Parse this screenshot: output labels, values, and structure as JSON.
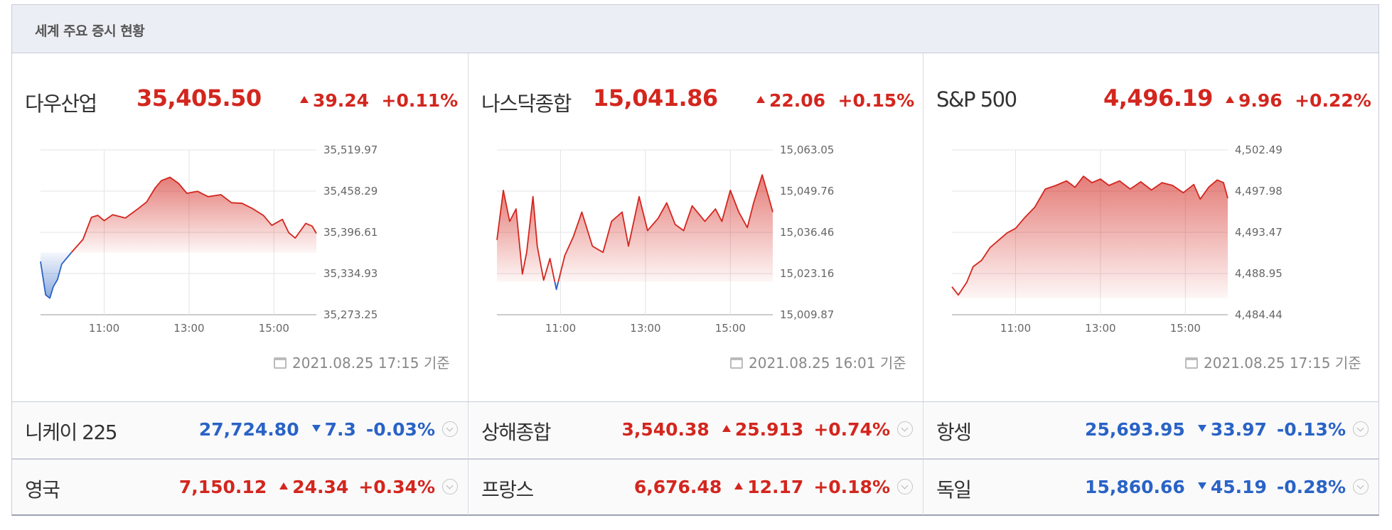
{
  "header": {
    "title": "세계 주요 증시 현황"
  },
  "colors": {
    "up": "#d3261e",
    "down": "#2a63c6",
    "grid": "#e3e3e3"
  },
  "icons": {
    "timestamp": "calendar-clock-icon",
    "expand": "chevron-down-icon",
    "up": "triangle-up-icon",
    "down": "triangle-down-icon"
  },
  "panels": [
    {
      "name": "다우산업",
      "value": "35,405.50",
      "direction": "up",
      "change": "39.24",
      "pct": "+0.11%",
      "timestamp": "2021.08.25 17:15 기준"
    },
    {
      "name": "나스닥종합",
      "value": "15,041.86",
      "direction": "up",
      "change": "22.06",
      "pct": "+0.15%",
      "timestamp": "2021.08.25 16:01 기준"
    },
    {
      "name": "S&P 500",
      "value": "4,496.19",
      "direction": "up",
      "change": "9.96",
      "pct": "+0.22%",
      "timestamp": "2021.08.25 17:15 기준"
    }
  ],
  "rows": [
    [
      {
        "name": "니케이 225",
        "value": "27,724.80",
        "direction": "down",
        "change": "7.3",
        "pct": "-0.03%"
      },
      {
        "name": "상해종합",
        "value": "3,540.38",
        "direction": "up",
        "change": "25.913",
        "pct": "+0.74%"
      },
      {
        "name": "항셍",
        "value": "25,693.95",
        "direction": "down",
        "change": "33.97",
        "pct": "-0.13%"
      }
    ],
    [
      {
        "name": "영국",
        "value": "7,150.12",
        "direction": "up",
        "change": "24.34",
        "pct": "+0.34%"
      },
      {
        "name": "프랑스",
        "value": "6,676.48",
        "direction": "up",
        "change": "12.17",
        "pct": "+0.18%"
      },
      {
        "name": "독일",
        "value": "15,860.66",
        "direction": "down",
        "change": "45.19",
        "pct": "-0.28%"
      }
    ]
  ],
  "chart_data": [
    {
      "type": "area",
      "series_of": "다우산업",
      "x_ticks": [
        "11:00",
        "13:00",
        "15:00"
      ],
      "y_ticks": [
        "35,519.97",
        "35,458.29",
        "35,396.61",
        "35,334.93",
        "35,273.25"
      ],
      "ylim": [
        35273.25,
        35519.97
      ],
      "xlim": [
        9.5,
        16.0
      ],
      "baseline": 35366.26,
      "grid": true,
      "x": [
        9.5,
        9.62,
        9.72,
        9.8,
        9.9,
        10.0,
        10.25,
        10.5,
        10.7,
        10.85,
        11.0,
        11.2,
        11.5,
        11.8,
        12.0,
        12.2,
        12.35,
        12.55,
        12.75,
        12.95,
        13.2,
        13.45,
        13.75,
        14.0,
        14.25,
        14.5,
        14.75,
        14.95,
        15.2,
        15.35,
        15.5,
        15.75,
        15.9,
        16.0
      ],
      "y": [
        35353,
        35303,
        35298,
        35315,
        35326,
        35349,
        35368,
        35386,
        35419,
        35422,
        35414,
        35423,
        35418,
        35432,
        35442,
        35463,
        35474,
        35479,
        35470,
        35455,
        35458,
        35450,
        35453,
        35441,
        35440,
        35432,
        35422,
        35407,
        35416,
        35396,
        35388,
        35410,
        35406,
        35395
      ]
    },
    {
      "type": "area",
      "series_of": "나스닥종합",
      "x_ticks": [
        "11:00",
        "13:00",
        "15:00"
      ],
      "y_ticks": [
        "15,063.05",
        "15,049.76",
        "15,036.46",
        "15,023.16",
        "15,009.87"
      ],
      "ylim": [
        15009.87,
        15063.05
      ],
      "xlim": [
        9.5,
        16.0
      ],
      "baseline": 15020.5,
      "grid": true,
      "x": [
        9.5,
        9.65,
        9.8,
        9.95,
        10.1,
        10.2,
        10.35,
        10.45,
        10.6,
        10.75,
        10.9,
        11.1,
        11.3,
        11.5,
        11.75,
        12.0,
        12.2,
        12.45,
        12.6,
        12.85,
        13.05,
        13.3,
        13.5,
        13.7,
        13.9,
        14.1,
        14.4,
        14.65,
        14.8,
        15.0,
        15.2,
        15.4,
        15.55,
        15.75,
        15.9,
        16.0
      ],
      "y": [
        15034,
        15050,
        15040,
        15044,
        15023,
        15030,
        15048,
        15032,
        15021,
        15028,
        15018,
        15029,
        15035,
        15043,
        15032,
        15030,
        15040,
        15043,
        15032,
        15048,
        15037,
        15041,
        15046,
        15039,
        15037,
        15045,
        15040,
        15044,
        15040,
        15050,
        15043,
        15038,
        15046,
        15055,
        15048,
        15043
      ]
    },
    {
      "type": "area",
      "series_of": "S&P 500",
      "x_ticks": [
        "11:00",
        "13:00",
        "15:00"
      ],
      "y_ticks": [
        "4,502.49",
        "4,497.98",
        "4,493.47",
        "4,488.95",
        "4,484.44"
      ],
      "ylim": [
        4484.44,
        4502.49
      ],
      "xlim": [
        9.5,
        16.0
      ],
      "baseline": 4486.25,
      "grid": true,
      "x": [
        9.5,
        9.65,
        9.85,
        10.0,
        10.2,
        10.4,
        10.6,
        10.8,
        11.0,
        11.2,
        11.45,
        11.7,
        11.95,
        12.2,
        12.4,
        12.6,
        12.8,
        13.0,
        13.2,
        13.45,
        13.7,
        13.95,
        14.2,
        14.45,
        14.7,
        14.95,
        15.2,
        15.35,
        15.55,
        15.75,
        15.9,
        16.0
      ],
      "y": [
        4487.5,
        4486.6,
        4488.0,
        4489.7,
        4490.4,
        4491.8,
        4492.6,
        4493.4,
        4493.9,
        4495.0,
        4496.2,
        4498.2,
        4498.6,
        4499.1,
        4498.4,
        4499.6,
        4498.9,
        4499.3,
        4498.6,
        4499.1,
        4498.2,
        4499.0,
        4498.1,
        4498.9,
        4498.6,
        4497.8,
        4498.7,
        4497.1,
        4498.4,
        4499.2,
        4498.9,
        4497.2
      ]
    }
  ]
}
